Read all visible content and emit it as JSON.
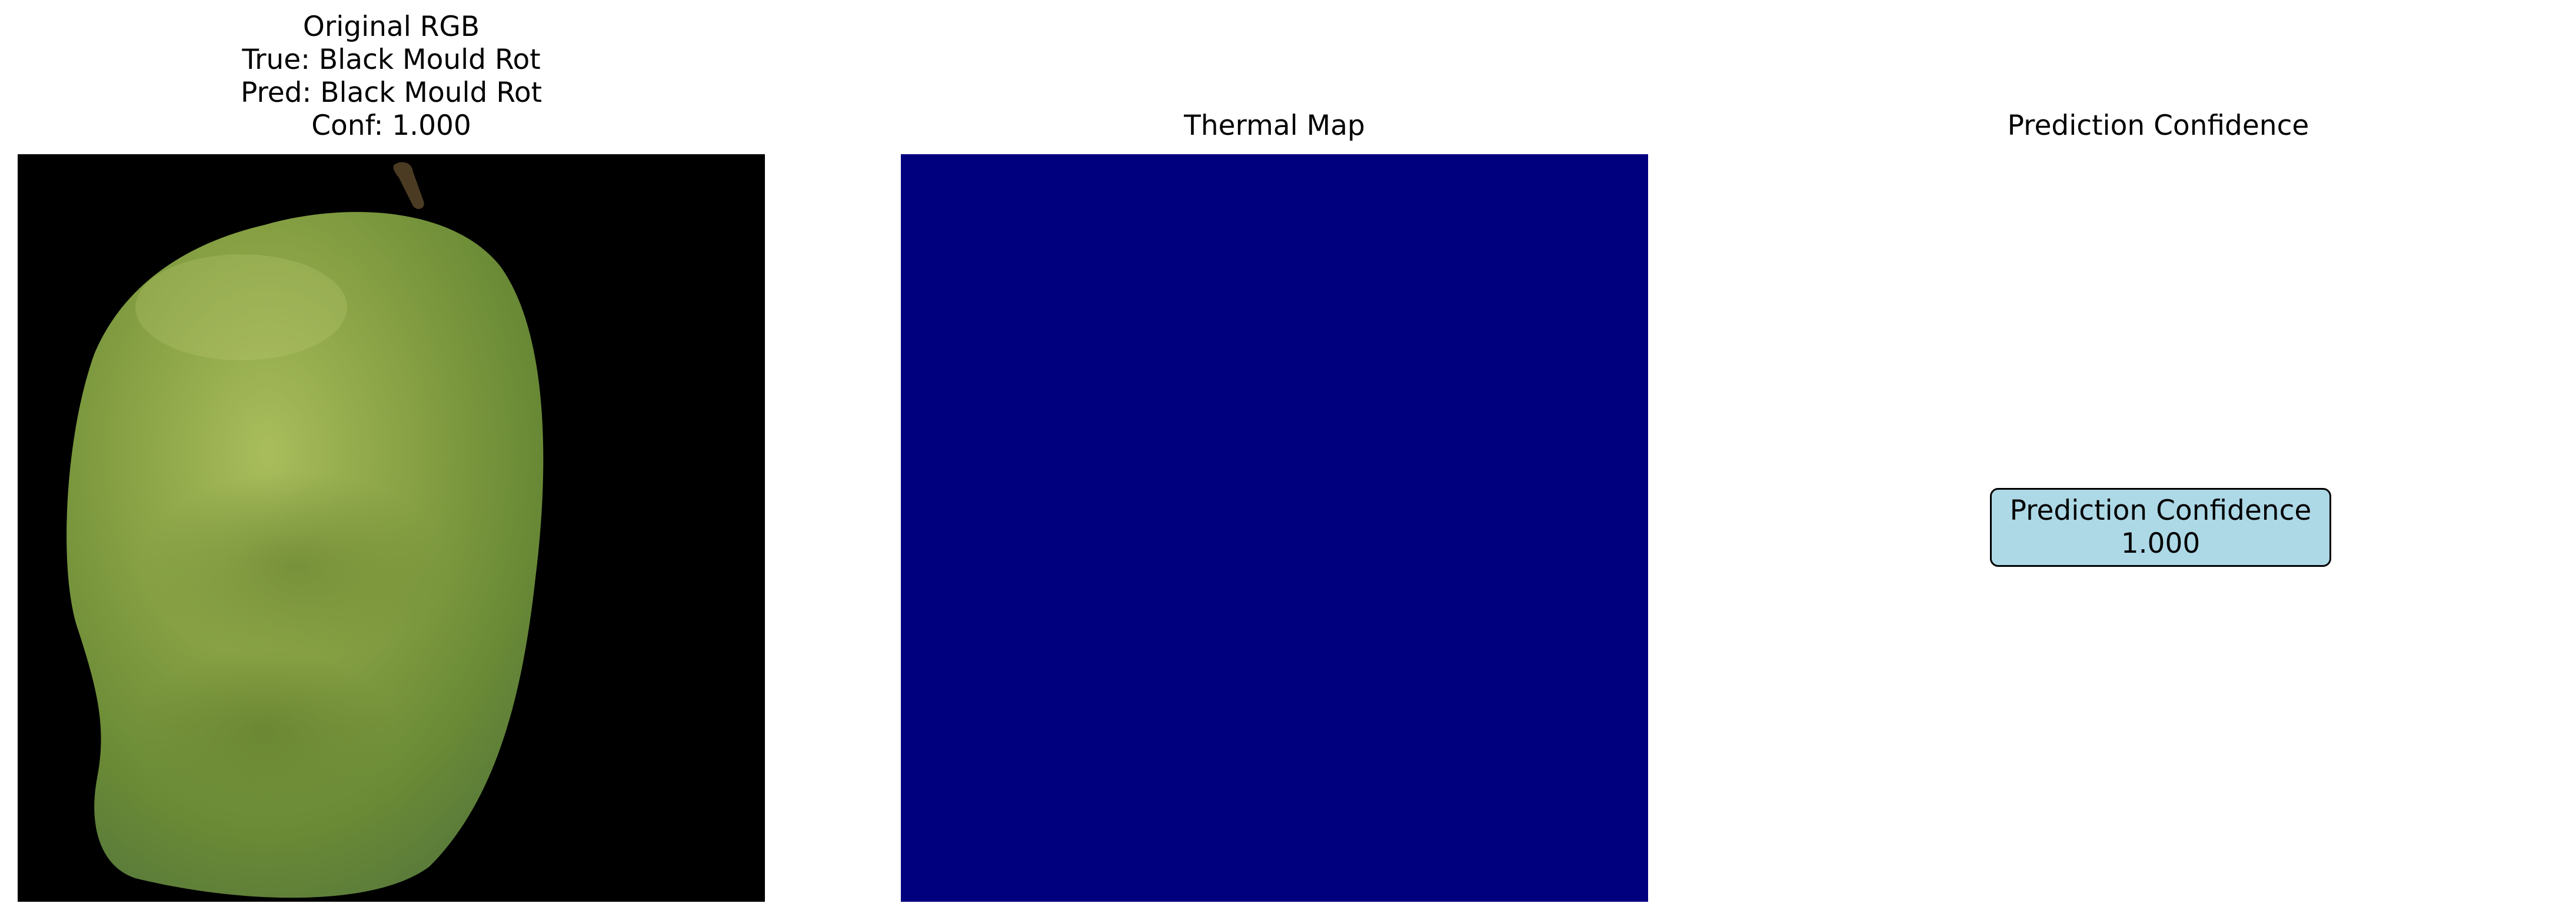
{
  "panels": {
    "rgb": {
      "title_lines": [
        "Original RGB",
        "True: Black Mould Rot",
        "Pred: Black Mould Rot",
        "Conf: 1.000"
      ],
      "background_color": "#000000",
      "fruit_color": "#7e9b3f"
    },
    "thermal": {
      "title": "Thermal Map",
      "fill_color": "#00007f"
    },
    "confidence": {
      "title": "Prediction Confidence",
      "box_label": "Prediction Confidence",
      "box_value": "1.000",
      "box_color": "#add8e6"
    }
  }
}
